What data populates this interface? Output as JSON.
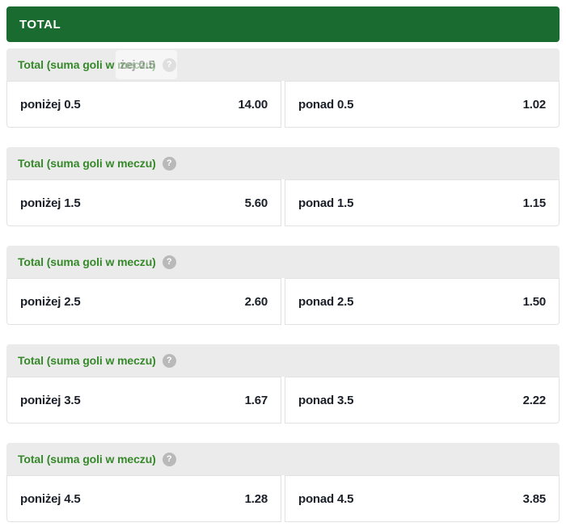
{
  "header": {
    "title": "TOTAL"
  },
  "icons": {
    "help_glyph": "?"
  },
  "drag_ghost": {
    "text": "żej 0.5"
  },
  "colors": {
    "brand_green": "#1A6B2F",
    "title_green": "#36892A",
    "header_bg": "#EBEBEB",
    "cell_border": "#E2E2E2",
    "odds_text": "#1B1F28",
    "help_icon_bg": "#B9B9B9"
  },
  "sections": [
    {
      "title": "Total (suma goli w meczu)",
      "outcomes": [
        {
          "label": "poniżej 0.5",
          "odds": "14.00"
        },
        {
          "label": "ponad 0.5",
          "odds": "1.02"
        }
      ]
    },
    {
      "title": "Total (suma goli w meczu)",
      "outcomes": [
        {
          "label": "poniżej 1.5",
          "odds": "5.60"
        },
        {
          "label": "ponad 1.5",
          "odds": "1.15"
        }
      ]
    },
    {
      "title": "Total (suma goli w meczu)",
      "outcomes": [
        {
          "label": "poniżej 2.5",
          "odds": "2.60"
        },
        {
          "label": "ponad 2.5",
          "odds": "1.50"
        }
      ]
    },
    {
      "title": "Total (suma goli w meczu)",
      "outcomes": [
        {
          "label": "poniżej 3.5",
          "odds": "1.67"
        },
        {
          "label": "ponad 3.5",
          "odds": "2.22"
        }
      ]
    },
    {
      "title": "Total (suma goli w meczu)",
      "outcomes": [
        {
          "label": "poniżej 4.5",
          "odds": "1.28"
        },
        {
          "label": "ponad 4.5",
          "odds": "3.85"
        }
      ]
    }
  ]
}
